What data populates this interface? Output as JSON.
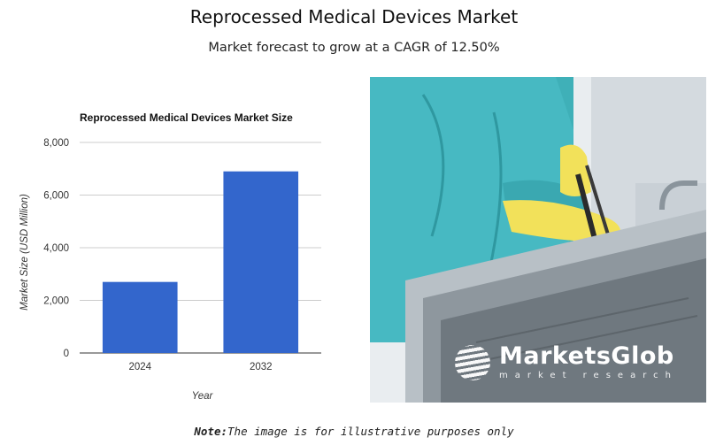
{
  "header": {
    "title": "Reprocessed Medical Devices Market",
    "subtitle": "Market forecast to grow at a CAGR of 12.50%"
  },
  "chart_data": {
    "type": "bar",
    "title": "Reprocessed Medical Devices Market Size",
    "categories": [
      "2024",
      "2032"
    ],
    "values": [
      2700,
      6900
    ],
    "xlabel": "Year",
    "ylabel": "Market Size (USD Million)",
    "ylim": [
      0,
      8000
    ],
    "yticks": [
      0,
      2000,
      4000,
      6000,
      8000
    ],
    "ytick_labels": [
      "0",
      "2,000",
      "4,000",
      "6,000",
      "8,000"
    ],
    "grid": true,
    "bar_color": "#3366cc"
  },
  "image": {
    "watermark_brand": "MarketsGlob",
    "watermark_tagline": "market research"
  },
  "footer": {
    "note_label": "Note:",
    "note_text": "The image is for illustrative purposes only"
  }
}
